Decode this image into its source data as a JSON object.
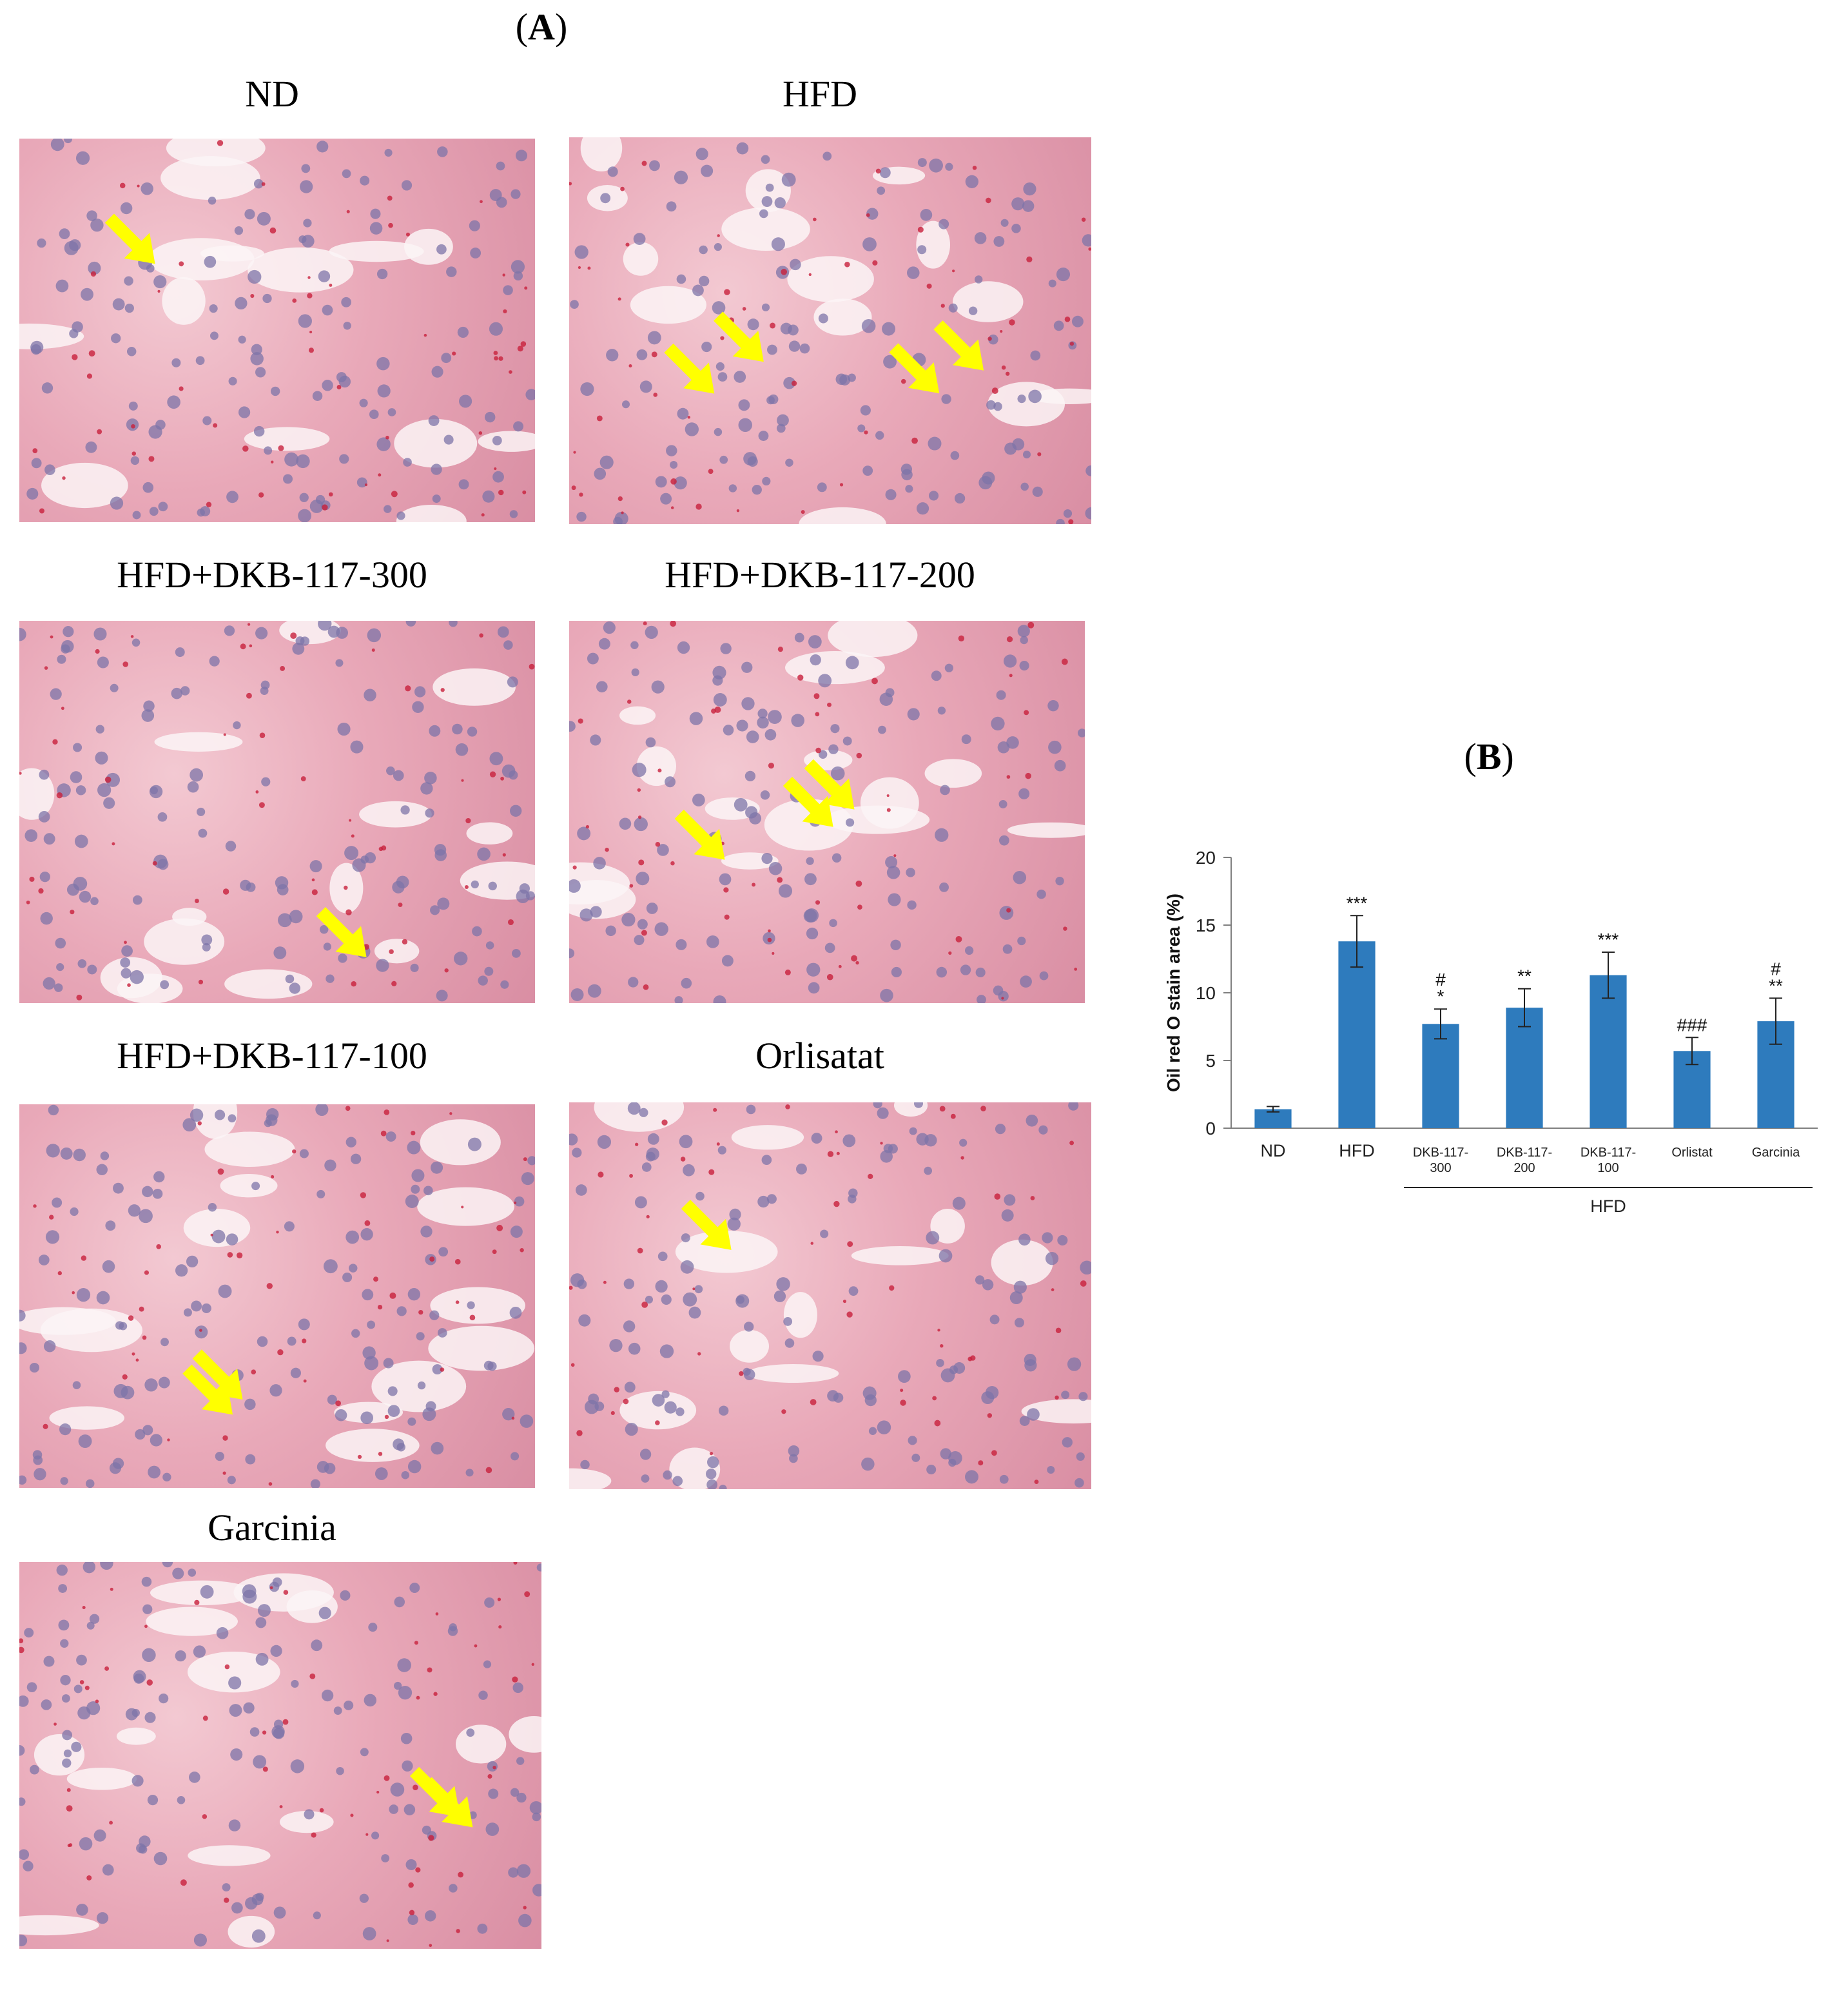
{
  "panel_a": {
    "label": "A",
    "micrographs": [
      {
        "title": "ND",
        "arrows": 1
      },
      {
        "title": "HFD",
        "arrows": 4
      },
      {
        "title": "HFD+DKB-117-300",
        "arrows": 1
      },
      {
        "title": "HFD+DKB-117-200",
        "arrows": 3
      },
      {
        "title": "HFD+DKB-117-100",
        "arrows": 2
      },
      {
        "title": "Orlisatat",
        "arrows": 1
      },
      {
        "title": "Garcinia",
        "arrows": 2
      }
    ],
    "colors": {
      "arrow": "#ffff00",
      "stain": "#e28ea4",
      "nucleus": "#7e74a8"
    }
  },
  "panel_b": {
    "label": "B"
  },
  "chart_data": {
    "type": "bar",
    "categories": [
      "ND",
      "HFD",
      "DKB-117-\n300",
      "DKB-117-\n200",
      "DKB-117-\n100",
      "Orlistat",
      "Garcinia"
    ],
    "values": [
      1.4,
      13.8,
      7.7,
      8.9,
      11.3,
      5.7,
      7.9
    ],
    "errors": [
      0.2,
      1.9,
      1.1,
      1.4,
      1.7,
      1.0,
      1.7
    ],
    "annotations": [
      [
        "",
        ""
      ],
      [
        "",
        "***"
      ],
      [
        "#",
        "*"
      ],
      [
        "",
        "**"
      ],
      [
        "",
        "***"
      ],
      [
        "",
        "###"
      ],
      [
        "#",
        "**"
      ]
    ],
    "ylabel": "Oil red O stain area (%)",
    "xlabel": "",
    "ylim": [
      0,
      20
    ],
    "yticks": [
      0,
      5,
      10,
      15,
      20
    ],
    "group_label": "HFD",
    "group_members": [
      2,
      6
    ],
    "bar_color": "#2e7bbd",
    "legend": "none",
    "grid": false
  }
}
